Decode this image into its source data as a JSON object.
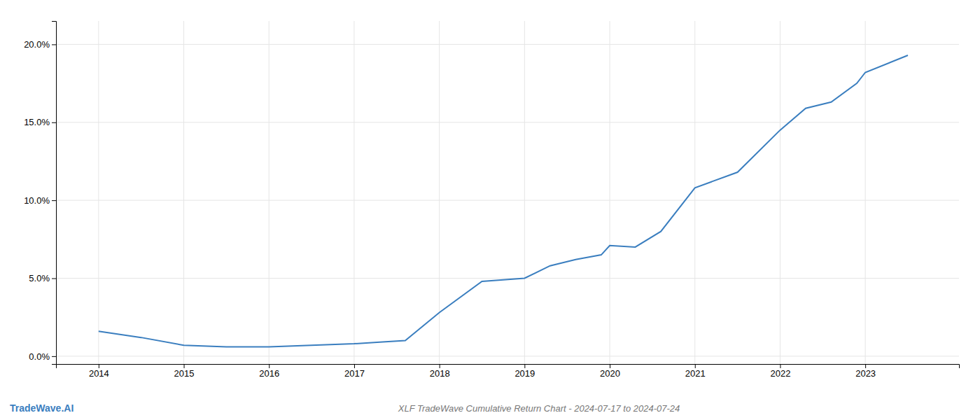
{
  "chart_data": {
    "type": "line",
    "title": "XLF TradeWave Cumulative Return Chart - 2024-07-17 to 2024-07-24",
    "annotations": [
      "TradeWave.AI"
    ],
    "x": [
      2014,
      2014.5,
      2015,
      2015.5,
      2016,
      2016.5,
      2017,
      2017.3,
      2017.6,
      2018,
      2018.5,
      2019,
      2019.3,
      2019.6,
      2019.9,
      2020,
      2020.3,
      2020.6,
      2021,
      2021.5,
      2022,
      2022.3,
      2022.6,
      2022.9,
      2023,
      2023.5
    ],
    "values": [
      1.6,
      1.2,
      0.7,
      0.6,
      0.6,
      0.7,
      0.8,
      0.9,
      1.0,
      2.8,
      4.8,
      5.0,
      5.8,
      6.2,
      6.5,
      7.1,
      7.0,
      8.0,
      10.8,
      11.8,
      14.5,
      15.9,
      16.3,
      17.5,
      18.2,
      19.3
    ],
    "color": "#3a7ebf",
    "xlim": [
      2013.5,
      2024.1
    ],
    "ylim": [
      -0.5,
      21.5
    ],
    "xticks": [
      2014,
      2015,
      2016,
      2017,
      2018,
      2019,
      2020,
      2021,
      2022,
      2023
    ],
    "yticks": [
      {
        "value": 0.0,
        "label": "0.0%"
      },
      {
        "value": 5.0,
        "label": "5.0%"
      },
      {
        "value": 10.0,
        "label": "10.0%"
      },
      {
        "value": 15.0,
        "label": "15.0%"
      },
      {
        "value": 20.0,
        "label": "20.0%"
      }
    ],
    "grid": true
  }
}
